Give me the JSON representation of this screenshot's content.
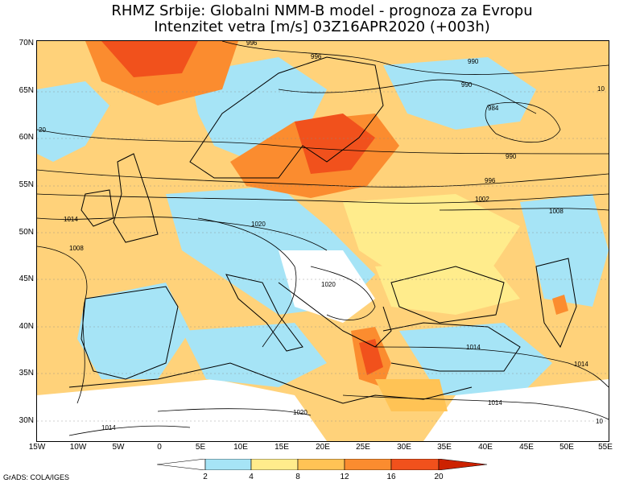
{
  "title_line1": "RHMZ Srbije: Globalni NMM-B model - prognoza za Evropu",
  "title_line2": "Intenzitet vetra [m/s] 03Z16APR2020 (+003h)",
  "lat_labels": [
    "70N",
    "65N",
    "60N",
    "55N",
    "50N",
    "45N",
    "40N",
    "35N",
    "30N"
  ],
  "lon_labels": [
    "15W",
    "10W",
    "5W",
    "0",
    "5E",
    "10E",
    "15E",
    "20E",
    "25E",
    "30E",
    "35E",
    "40E",
    "45E",
    "50E",
    "55E"
  ],
  "isobar_labels": [
    "996",
    "996",
    "990",
    "990",
    "984",
    "990",
    "996",
    "1002",
    "1008",
    "1014",
    "1014",
    "1014",
    "1020",
    "1020",
    "1020",
    "1014",
    "1008",
    "1014",
    "20",
    "10",
    "10"
  ],
  "colorbar": {
    "labels": [
      "2",
      "4",
      "8",
      "12",
      "16",
      "20"
    ],
    "colors": [
      "#ffffff",
      "#a6e4f6",
      "#ffec8c",
      "#ffc355",
      "#fb8c2f",
      "#f1511c",
      "#cc2200"
    ]
  },
  "credit": "GrADS: COLA/IGES",
  "map_colors": {
    "sea_fill": "#ffd27a",
    "calm": "#ffffff",
    "light": "#a6e4f6",
    "moderate": "#ffec8c",
    "fresh": "#ffc355",
    "strong": "#fb8c2f",
    "gale": "#f1511c",
    "coast": "#000000",
    "isobar": "#000000"
  }
}
